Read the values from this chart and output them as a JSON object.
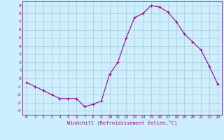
{
  "x": [
    0,
    1,
    2,
    3,
    4,
    5,
    6,
    7,
    8,
    9,
    10,
    11,
    12,
    13,
    14,
    15,
    16,
    17,
    18,
    19,
    20,
    21,
    22,
    23
  ],
  "y": [
    -0.5,
    -1.0,
    -1.5,
    -2.0,
    -2.5,
    -2.5,
    -2.5,
    -3.5,
    -3.2,
    -2.8,
    0.5,
    2.0,
    5.0,
    7.5,
    8.0,
    9.0,
    8.8,
    8.2,
    7.0,
    5.5,
    4.5,
    3.5,
    1.5,
    -0.7
  ],
  "line_color": "#990099",
  "marker": "+",
  "marker_size": 3,
  "bg_color": "#cceeff",
  "grid_color": "#aacccc",
  "tick_color": "#990099",
  "spine_color": "#990099",
  "xlabel": "Windchill (Refroidissement éolien,°C)",
  "xlim": [
    -0.5,
    23.5
  ],
  "ylim": [
    -4.5,
    9.5
  ],
  "yticks": [
    -4,
    -3,
    -2,
    -1,
    0,
    1,
    2,
    3,
    4,
    5,
    6,
    7,
    8,
    9
  ],
  "xticks": [
    0,
    1,
    2,
    3,
    4,
    5,
    6,
    7,
    8,
    9,
    10,
    11,
    12,
    13,
    14,
    15,
    16,
    17,
    18,
    19,
    20,
    21,
    22,
    23
  ]
}
